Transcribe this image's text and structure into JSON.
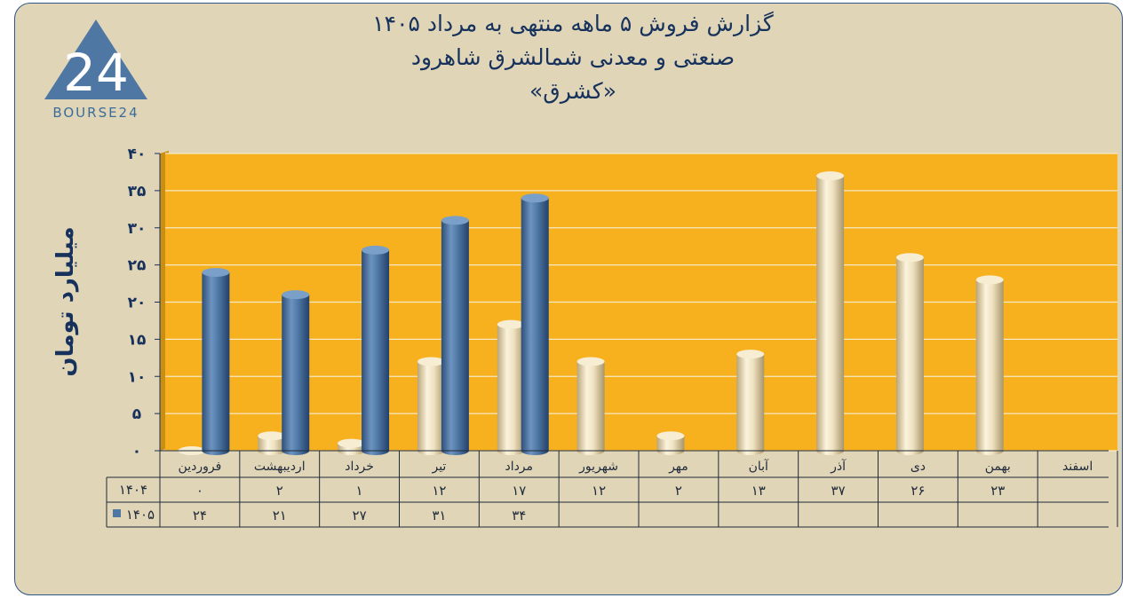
{
  "header": {
    "title_line1": "گزارش  فروش ۵ ماهه منتهی به مرداد ۱۴۰۵",
    "title_line2": "صنعتی و معدنی شمالشرق شاهرود",
    "title_line3": "«کشرق»"
  },
  "logo": {
    "mark": "24",
    "text": "BOURSE24"
  },
  "colors": {
    "plot_bg": "#f7b01e",
    "bar_1404": "#efe2c1",
    "bar_1405": "#4f77a3",
    "title": "#16325c"
  },
  "chart_data": {
    "type": "bar",
    "ylabel": "میلیارد تومان",
    "ylim": [
      0,
      40
    ],
    "y_ticks": [
      0,
      5,
      10,
      15,
      20,
      25,
      30,
      35,
      40
    ],
    "y_tick_labels": [
      "۰",
      "۵",
      "۱۰",
      "۱۵",
      "۲۰",
      "۲۵",
      "۳۰",
      "۳۵",
      "۴۰"
    ],
    "grid": true,
    "categories": [
      "فروردین",
      "اردیبهشت",
      "خرداد",
      "تیر",
      "مرداد",
      "شهریور",
      "مهر",
      "آبان",
      "آذر",
      "دی",
      "بهمن",
      "اسفند"
    ],
    "series": [
      {
        "name": "۱۴۰۴",
        "values": [
          0,
          2,
          1,
          12,
          17,
          12,
          2,
          13,
          37,
          26,
          23,
          null
        ],
        "labels": [
          "۰",
          "۲",
          "۱",
          "۱۲",
          "۱۷",
          "۱۲",
          "۲",
          "۱۳",
          "۳۷",
          "۲۶",
          "۲۳",
          ""
        ]
      },
      {
        "name": "۱۴۰۵",
        "values": [
          24,
          21,
          27,
          31,
          34,
          null,
          null,
          null,
          null,
          null,
          null,
          null
        ],
        "labels": [
          "۲۴",
          "۲۱",
          "۲۷",
          "۳۱",
          "۳۴",
          "",
          "",
          "",
          "",
          "",
          "",
          ""
        ]
      }
    ]
  }
}
